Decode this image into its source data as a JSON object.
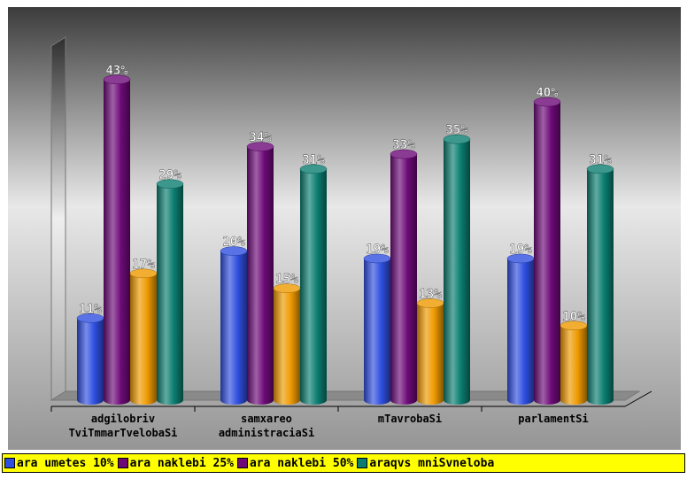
{
  "chart_data": {
    "type": "bar",
    "categories": [
      [
        "adgilobriv",
        "TviTmmarTvelobaSi"
      ],
      [
        "samxareo",
        "administraciaSi"
      ],
      [
        "mTavrobaSi"
      ],
      [
        "parlamentSi"
      ]
    ],
    "series": [
      {
        "name": "ara umetes 10%",
        "values": [
          11,
          20,
          19,
          19
        ],
        "labels": [
          "11%",
          "20%",
          "19%",
          "19%"
        ]
      },
      {
        "name": "ara naklebi 25%",
        "values": [
          43,
          34,
          33,
          40
        ],
        "labels": [
          "43%",
          "34%",
          "33%",
          "40%"
        ]
      },
      {
        "name": "ara naklebi 50%",
        "values": [
          17,
          15,
          13,
          10
        ],
        "labels": [
          "17%",
          "15%",
          "13%",
          "10%"
        ]
      },
      {
        "name": "araqvs mniSvneloba",
        "values": [
          29,
          31,
          35,
          31
        ],
        "labels": [
          "29%",
          "31%",
          "35%",
          "31%"
        ]
      }
    ],
    "ylim": [
      0,
      45
    ],
    "grid": false,
    "legend_position": "bottom"
  },
  "colors": {
    "series": [
      "#2f4fe0",
      "#6d0a78",
      "#ee9a00",
      "#0b7d70"
    ],
    "legend_swatches": [
      "#2f4fe0",
      "#6d0a78",
      "#6d0a78",
      "#0b7d70"
    ],
    "background_top": "#404040",
    "background_mid": "#e6e6e6",
    "background_bottom": "#9a9a9a",
    "legend_background": "#ffff00"
  }
}
